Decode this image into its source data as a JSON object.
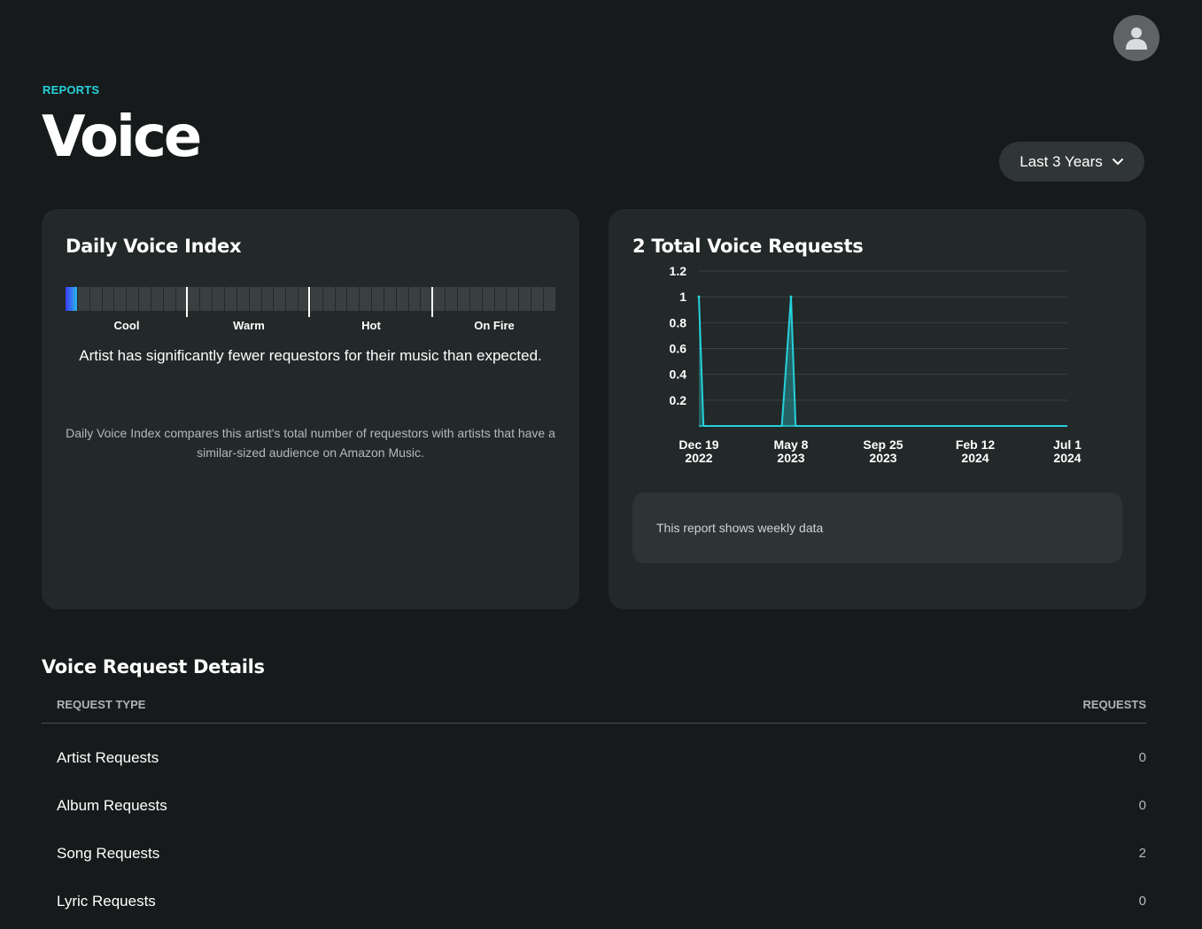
{
  "header": {
    "eyebrow": "REPORTS",
    "title": "Voice",
    "range_select": {
      "label": "Last 3 Years",
      "icon": "chevron-down-icon"
    },
    "avatar_icon": "user-icon"
  },
  "daily_index": {
    "title": "Daily Voice Index",
    "tiers": [
      "Cool",
      "Warm",
      "Hot",
      "On Fire"
    ],
    "level_fraction": 0.025,
    "message": "Artist has significantly fewer requestors for their music than expected.",
    "footnote": "Daily Voice Index compares this artist's total number of requestors with artists that have a similar-sized audience on Amazon Music.",
    "colors": {
      "active_start": "#3a3cf2",
      "active_end": "#2ab5f0",
      "inactive": "#3a3f40"
    }
  },
  "requests_chart": {
    "title": "2 Total Voice Requests",
    "note": "This report shows weekly data",
    "chart_data": {
      "type": "line",
      "x_start": "2022-12-19",
      "x_ticks": [
        {
          "top": "Dec 19",
          "bottom": "2022"
        },
        {
          "top": "May 8",
          "bottom": "2023"
        },
        {
          "top": "Sep 25",
          "bottom": "2023"
        },
        {
          "top": "Feb 12",
          "bottom": "2024"
        },
        {
          "top": "Jul 1",
          "bottom": "2024"
        }
      ],
      "y_ticks": [
        "0.2",
        "0.4",
        "0.6",
        "0.8",
        "1",
        "1.2"
      ],
      "ylim": [
        0,
        1.2
      ],
      "xlim": [
        "2022-12-19",
        "2024-07-01"
      ],
      "series": [
        {
          "points": [
            {
              "x": "2022-12-19",
              "y": 1
            },
            {
              "x": "2022-12-26",
              "y": 0
            },
            {
              "x": "2023-04-24",
              "y": 0
            },
            {
              "x": "2023-05-08",
              "y": 1
            },
            {
              "x": "2023-05-15",
              "y": 0
            },
            {
              "x": "2024-07-01",
              "y": 0
            }
          ]
        }
      ],
      "color": "#25d1da",
      "grid": true
    }
  },
  "details": {
    "title": "Voice Request Details",
    "columns": {
      "type": "REQUEST TYPE",
      "requests": "REQUESTS"
    },
    "rows": [
      {
        "label": "Artist Requests",
        "value": "0"
      },
      {
        "label": "Album Requests",
        "value": "0"
      },
      {
        "label": "Song Requests",
        "value": "2"
      },
      {
        "label": "Lyric Requests",
        "value": "0"
      }
    ]
  }
}
